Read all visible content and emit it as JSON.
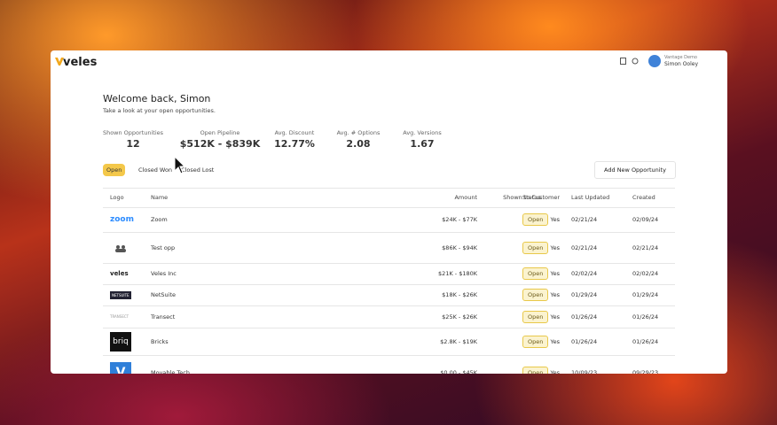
{
  "header": {
    "brand": "veles",
    "account": "Vantage Demo",
    "user": "Simon Ooley"
  },
  "welcome": {
    "title": "Welcome back, Simon",
    "subtitle": "Take a look at your open opportunities."
  },
  "stats": [
    {
      "label": "Shown Opportunities",
      "value": "12"
    },
    {
      "label": "Open Pipeline",
      "value": "$512K - $839K"
    },
    {
      "label": "Avg. Discount",
      "value": "12.77%"
    },
    {
      "label": "Avg. # Options",
      "value": "2.08"
    },
    {
      "label": "Avg. Versions",
      "value": "1.67"
    }
  ],
  "tabs": [
    "Open",
    "Closed Won",
    "Closed Lost"
  ],
  "button": "Add New Opportunity",
  "table": {
    "columns": [
      "Logo",
      "Name",
      "Amount",
      "Shown to Customer",
      "Status",
      "Last Updated",
      "Created"
    ],
    "rows": [
      {
        "logo": "zoom",
        "name": "Zoom",
        "amount": "$24K - $77K",
        "shown": "Yes",
        "status": "Open",
        "updated": "02/21/24",
        "created": "02/09/24"
      },
      {
        "name": "Test opp",
        "amount": "$86K - $94K",
        "shown": "Yes",
        "status": "Open",
        "updated": "02/21/24",
        "created": "02/21/24"
      },
      {
        "logo": "veles",
        "name": "Veles Inc",
        "amount": "$21K - $180K",
        "shown": "Yes",
        "status": "Open",
        "updated": "02/02/24",
        "created": "02/02/24"
      },
      {
        "logo": "NETSUITE",
        "name": "NetSuite",
        "amount": "$18K - $26K",
        "shown": "Yes",
        "status": "Open",
        "updated": "01/29/24",
        "created": "01/29/24"
      },
      {
        "logo": "TRANSECT",
        "name": "Transect",
        "amount": "$25K - $26K",
        "shown": "Yes",
        "status": "Open",
        "updated": "01/26/24",
        "created": "01/26/24"
      },
      {
        "logo": "briq",
        "name": "Bricks",
        "amount": "$2.8K - $19K",
        "shown": "Yes",
        "status": "Open",
        "updated": "01/26/24",
        "created": "01/26/24"
      },
      {
        "logo": "V",
        "name": "Movable Tech",
        "amount": "$0.00 - $45K",
        "shown": "Yes",
        "status": "Open",
        "updated": "10/09/23",
        "created": "09/29/23"
      }
    ]
  }
}
